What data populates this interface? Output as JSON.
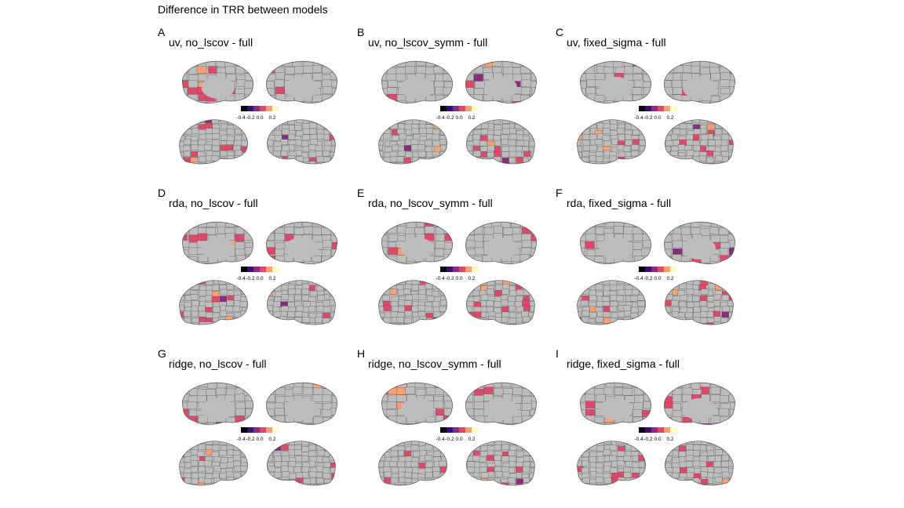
{
  "figure": {
    "title": "Difference in TRR between models",
    "colorbar": {
      "ticks": [
        "-0.4",
        "-0.2",
        "0.0",
        "0.2"
      ],
      "palette": [
        "#000004",
        "#3b0f70",
        "#8c2981",
        "#de4968",
        "#fe9f6d",
        "#fcfdbf"
      ]
    },
    "background_color": "#bdbdbd",
    "outline_color": "#555555"
  },
  "panels": [
    {
      "letter": "A",
      "title": "uv, no_lscov - full"
    },
    {
      "letter": "B",
      "title": "uv, no_lscov_symm - full"
    },
    {
      "letter": "C",
      "title": "uv, fixed_sigma - full"
    },
    {
      "letter": "D",
      "title": "rda, no_lscov - full"
    },
    {
      "letter": "E",
      "title": "rda, no_lscov_symm - full"
    },
    {
      "letter": "F",
      "title": "rda, fixed_sigma - full"
    },
    {
      "letter": "G",
      "title": "ridge, no_lscov - full"
    },
    {
      "letter": "H",
      "title": "ridge, no_lscov_symm - full"
    },
    {
      "letter": "I",
      "title": "ridge, fixed_sigma - full"
    }
  ]
}
